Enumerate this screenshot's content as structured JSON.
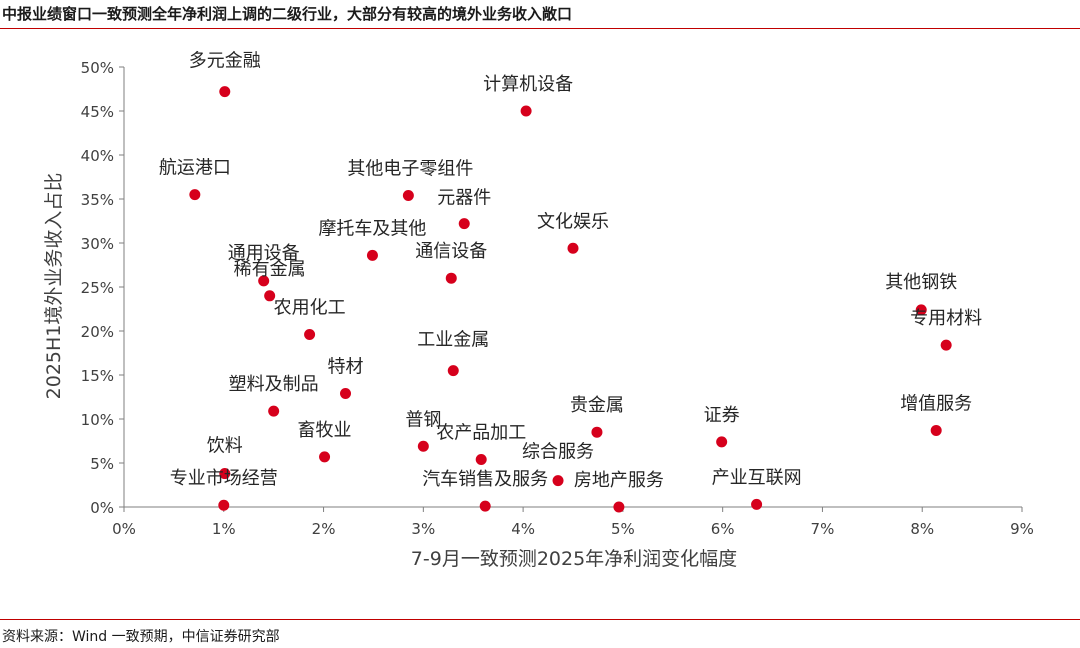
{
  "header": {
    "title": "中报业绩窗口一致预测全年净利润上调的二级行业，大部分有较高的境外业务收入敞口"
  },
  "footer": {
    "source": "资料来源：Wind 一致预期，中信证券研究部"
  },
  "colors": {
    "accent_rule": "#c00000",
    "marker": "#d6001c",
    "axis": "#7f7f7f",
    "text": "#262626"
  },
  "chart_data": {
    "type": "scatter",
    "title": "",
    "xlabel": "7-9月一致预测2025年净利润变化幅度",
    "ylabel": "2025H1境外业务收入占比",
    "xlim": [
      0,
      0.09
    ],
    "ylim": [
      0,
      0.5
    ],
    "x_ticks": [
      0,
      0.01,
      0.02,
      0.03,
      0.04,
      0.05,
      0.06,
      0.07,
      0.08,
      0.09
    ],
    "x_tick_labels": [
      "0%",
      "1%",
      "2%",
      "3%",
      "4%",
      "5%",
      "6%",
      "7%",
      "8%",
      "9%"
    ],
    "y_ticks": [
      0,
      0.05,
      0.1,
      0.15,
      0.2,
      0.25,
      0.3,
      0.35,
      0.4,
      0.45,
      0.5
    ],
    "y_tick_labels": [
      "0%",
      "5%",
      "10%",
      "15%",
      "20%",
      "25%",
      "30%",
      "35%",
      "40%",
      "45%",
      "50%"
    ],
    "grid": false,
    "legend": "none",
    "points": [
      {
        "label": "多元金融",
        "x": 0.0101,
        "y": 0.472
      },
      {
        "label": "计算机设备",
        "x": 0.0403,
        "y": 0.45
      },
      {
        "label": "航运港口",
        "x": 0.0071,
        "y": 0.355
      },
      {
        "label": "其他电子零组件",
        "x": 0.0285,
        "y": 0.354
      },
      {
        "label": "元器件",
        "x": 0.0341,
        "y": 0.322
      },
      {
        "label": "文化娱乐",
        "x": 0.045,
        "y": 0.294
      },
      {
        "label": "摩托车及其他",
        "x": 0.0249,
        "y": 0.286
      },
      {
        "label": "通用设备",
        "x": 0.014,
        "y": 0.257
      },
      {
        "label": "通信设备",
        "x": 0.0328,
        "y": 0.26
      },
      {
        "label": "稀有金属",
        "x": 0.0146,
        "y": 0.24
      },
      {
        "label": "其他钢铁",
        "x": 0.0799,
        "y": 0.224
      },
      {
        "label": "农用化工",
        "x": 0.0186,
        "y": 0.196
      },
      {
        "label": "专用材料",
        "x": 0.0824,
        "y": 0.184
      },
      {
        "label": "工业金属",
        "x": 0.033,
        "y": 0.155
      },
      {
        "label": "特材",
        "x": 0.0222,
        "y": 0.129
      },
      {
        "label": "塑料及制品",
        "x": 0.015,
        "y": 0.109
      },
      {
        "label": "增值服务",
        "x": 0.0814,
        "y": 0.087
      },
      {
        "label": "贵金属",
        "x": 0.0474,
        "y": 0.085
      },
      {
        "label": "证券",
        "x": 0.0599,
        "y": 0.074
      },
      {
        "label": "普钢",
        "x": 0.03,
        "y": 0.069
      },
      {
        "label": "畜牧业",
        "x": 0.0201,
        "y": 0.057
      },
      {
        "label": "农产品加工",
        "x": 0.0358,
        "y": 0.054
      },
      {
        "label": "饮料",
        "x": 0.0101,
        "y": 0.038
      },
      {
        "label": "综合服务",
        "x": 0.0435,
        "y": 0.03
      },
      {
        "label": "专业市场经营",
        "x": 0.01,
        "y": 0.002
      },
      {
        "label": "汽车销售及服务",
        "x": 0.0362,
        "y": 0.001
      },
      {
        "label": "房地产服务",
        "x": 0.0496,
        "y": 0.0
      },
      {
        "label": "产业互联网",
        "x": 0.0634,
        "y": 0.003
      }
    ]
  }
}
